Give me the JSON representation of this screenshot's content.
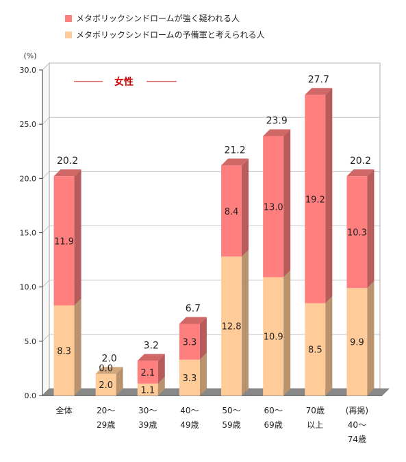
{
  "chart_data": {
    "type": "bar",
    "stacked": true,
    "annotation": "女性",
    "unit_label": "(%)",
    "ylim": [
      0,
      30
    ],
    "yticks": [
      "0.0",
      "5.0",
      "10.0",
      "15.0",
      "20.0",
      "25.0",
      "30.0"
    ],
    "categories": [
      [
        "全体"
      ],
      [
        "20～",
        "29歳"
      ],
      [
        "30～",
        "39歳"
      ],
      [
        "40～",
        "49歳"
      ],
      [
        "50～",
        "59歳"
      ],
      [
        "60～",
        "69歳"
      ],
      [
        "70歳",
        "以上"
      ],
      [
        "(再掲)",
        "40～",
        "74歳"
      ]
    ],
    "series": [
      {
        "name": "メタボリックシンドロームの予備軍と考えられる人",
        "color": "#FFCC99",
        "values": [
          8.3,
          2.0,
          1.1,
          3.3,
          12.8,
          10.9,
          8.5,
          9.9
        ],
        "labels": [
          "8.3",
          "2.0",
          "1.1",
          "3.3",
          "12.8",
          "10.9",
          "8.5",
          "9.9"
        ]
      },
      {
        "name": "メタボリックシンドロームが強く疑われる人",
        "color": "#FF7F7F",
        "values": [
          11.9,
          0.0,
          2.1,
          3.3,
          8.4,
          13.0,
          19.2,
          10.3
        ],
        "labels": [
          "11.9",
          "0.0",
          "2.1",
          "3.3",
          "8.4",
          "13.0",
          "19.2",
          "10.3"
        ]
      }
    ],
    "totals": [
      "20.2",
      "2.0",
      "3.2",
      "6.7",
      "21.2",
      "23.9",
      "27.7",
      "20.2"
    ],
    "legend_order": [
      1,
      0
    ],
    "grid": true,
    "legend_position": "top-left"
  }
}
